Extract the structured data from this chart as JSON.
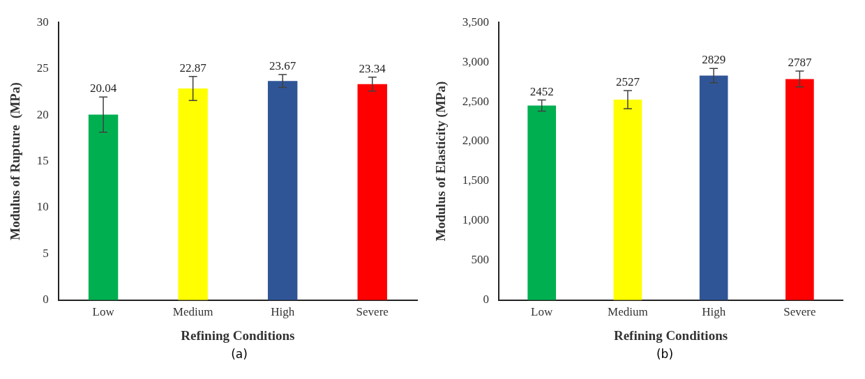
{
  "chart_data": [
    {
      "type": "bar",
      "categories": [
        "Low",
        "Medium",
        "High",
        "Severe"
      ],
      "values": [
        20.04,
        22.87,
        23.67,
        23.34
      ],
      "colors": [
        "#00b050",
        "#ffff00",
        "#2f5597",
        "#ff0000"
      ],
      "errors": [
        1.9,
        1.3,
        0.7,
        0.75
      ],
      "ylim": [
        0,
        30
      ],
      "yticks": [
        0,
        5,
        10,
        15,
        20,
        25,
        30
      ],
      "xlabel": "Refining Conditions",
      "ylabel": "Modulus of Rupture  (MPa)",
      "data_labels": true,
      "grid": false,
      "legend": false,
      "annotations": [
        "(a)"
      ]
    },
    {
      "type": "bar",
      "categories": [
        "Low",
        "Medium",
        "High",
        "Severe"
      ],
      "values": [
        2452,
        2527,
        2829,
        2787
      ],
      "colors": [
        "#00b050",
        "#ffff00",
        "#2f5597",
        "#ff0000"
      ],
      "errors": [
        70,
        115,
        90,
        100
      ],
      "ylim": [
        0,
        3500
      ],
      "yticks": [
        0,
        500,
        {
          "value": 1000,
          "label": "1,000"
        },
        {
          "value": 1500,
          "label": "1,500"
        },
        {
          "value": 2000,
          "label": "2,000"
        },
        {
          "value": 2500,
          "label": "2,500"
        },
        {
          "value": 3000,
          "label": "3,000"
        },
        {
          "value": 3500,
          "label": "3,500"
        }
      ],
      "xlabel": "Refining Conditions",
      "ylabel": "Modulus of Elasticity (MPa)",
      "data_labels": true,
      "grid": false,
      "legend": false,
      "annotations": [
        "(b)"
      ]
    }
  ]
}
